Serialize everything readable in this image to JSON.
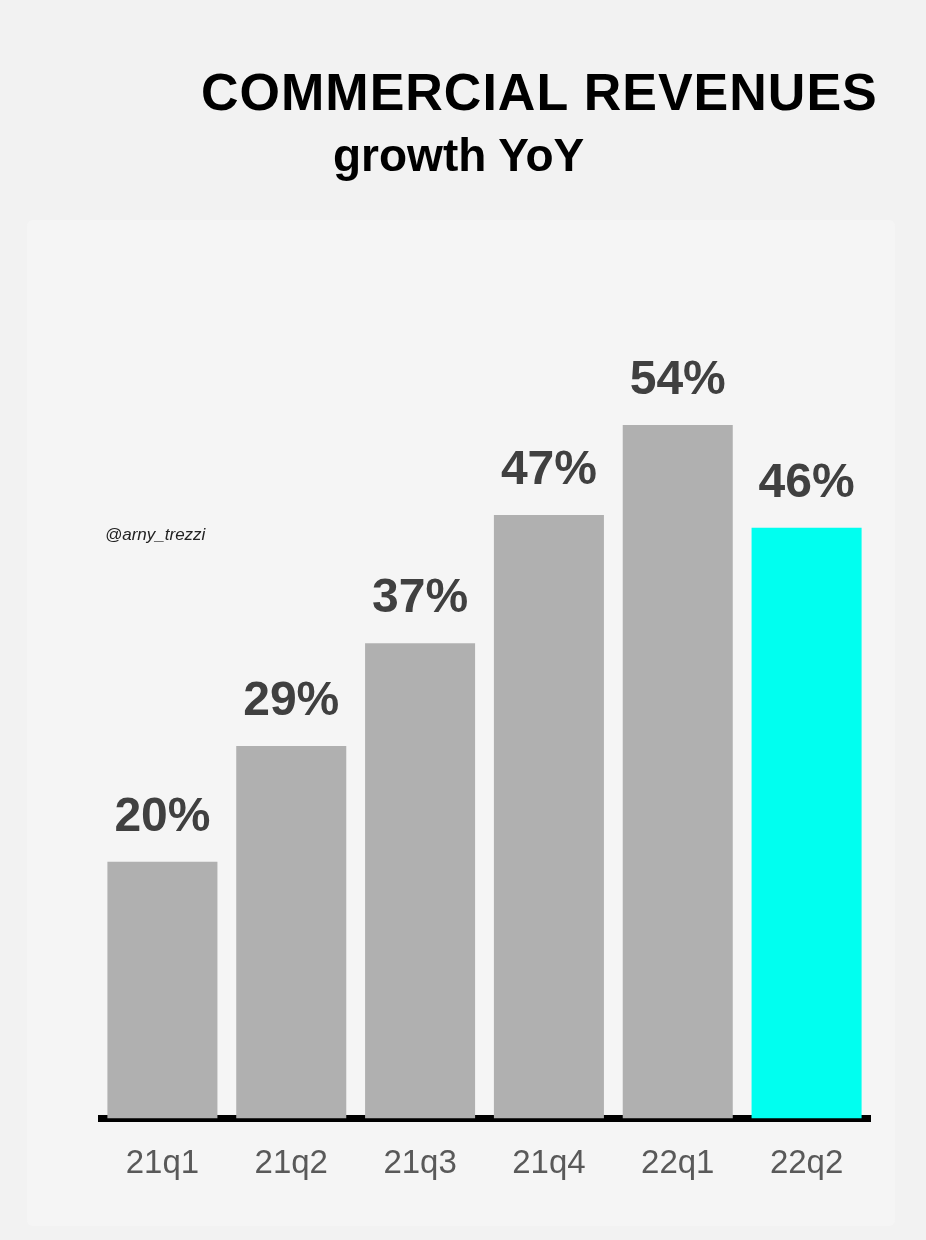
{
  "chart_data": {
    "type": "bar",
    "title": "COMMERCIAL REVENUES",
    "subtitle": "growth YoY",
    "categories": [
      "21q1",
      "21q2",
      "21q3",
      "21q4",
      "22q1",
      "22q2"
    ],
    "values": [
      20,
      29,
      37,
      47,
      54,
      46
    ],
    "colors": [
      "#b0b0b0",
      "#b0b0b0",
      "#b0b0b0",
      "#b0b0b0",
      "#b0b0b0",
      "#00fff0"
    ],
    "value_labels": [
      "20%",
      "29%",
      "37%",
      "47%",
      "54%",
      "46%"
    ],
    "tick_labels": "x",
    "annotations": [
      "@arny_trezzi"
    ]
  }
}
